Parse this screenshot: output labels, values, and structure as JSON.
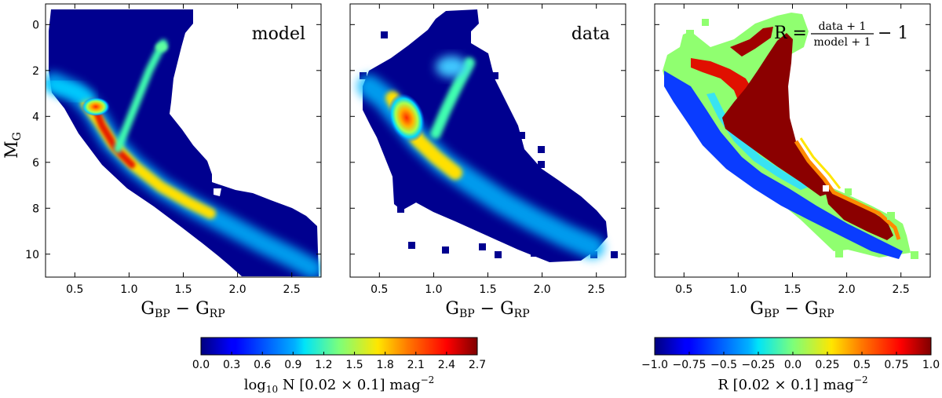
{
  "chart_data": [
    {
      "type": "heatmap",
      "panel_label": "model",
      "xlabel": "G_BP − G_RP",
      "xlabel_main": "G",
      "xlabel_sub1": "BP",
      "xlabel_sub2": "RP",
      "ylabel_main": "M",
      "ylabel_sub": "G",
      "xlim": [
        0.23,
        2.77
      ],
      "ylim": [
        11.0,
        -0.9
      ],
      "xticks": [
        "0.5",
        "1.0",
        "1.5",
        "2.0",
        "2.5"
      ],
      "xtick_values": [
        0.5,
        1.0,
        1.5,
        2.0,
        2.5
      ],
      "yticks": [
        "0",
        "2",
        "4",
        "6",
        "8",
        "10"
      ],
      "ytick_values": [
        0,
        2,
        4,
        6,
        8,
        10
      ],
      "colormap": "jet",
      "value_range": [
        0.0,
        2.7
      ]
    },
    {
      "type": "heatmap",
      "panel_label": "data",
      "xlabel": "G_BP − G_RP",
      "xlabel_main": "G",
      "xlabel_sub1": "BP",
      "xlabel_sub2": "RP",
      "xlim": [
        0.23,
        2.77
      ],
      "ylim": [
        11.0,
        -0.9
      ],
      "xticks": [
        "0.5",
        "1.0",
        "1.5",
        "2.0",
        "2.5"
      ],
      "xtick_values": [
        0.5,
        1.0,
        1.5,
        2.0,
        2.5
      ],
      "colormap": "jet",
      "value_range": [
        0.0,
        2.7
      ]
    },
    {
      "type": "heatmap",
      "panel_label": "R = (data + 1)/(model + 1) − 1",
      "formula_lhs": "R",
      "formula_num": "data + 1",
      "formula_den": "model + 1",
      "formula_tail": "− 1",
      "xlabel": "G_BP − G_RP",
      "xlabel_main": "G",
      "xlabel_sub1": "BP",
      "xlabel_sub2": "RP",
      "xlim": [
        0.23,
        2.77
      ],
      "ylim": [
        11.0,
        -0.9
      ],
      "xticks": [
        "0.5",
        "1.0",
        "1.5",
        "2.0",
        "2.5"
      ],
      "xtick_values": [
        0.5,
        1.0,
        1.5,
        2.0,
        2.5
      ],
      "colormap": "jet",
      "value_range": [
        -1.0,
        1.0
      ]
    }
  ],
  "colorbars": [
    {
      "ticks": [
        "0.0",
        "0.3",
        "0.6",
        "0.9",
        "1.2",
        "1.5",
        "1.8",
        "2.1",
        "2.4",
        "2.7"
      ],
      "tick_values": [
        0.0,
        0.3,
        0.6,
        0.9,
        1.2,
        1.5,
        1.8,
        2.1,
        2.4,
        2.7
      ],
      "range": [
        0.0,
        2.7
      ],
      "label": "log10 N [0.02 × 0.1] mag^-2",
      "label_log": "log",
      "label_log_sub": "10",
      "label_rest": " N [0.02 × 0.1] mag",
      "label_exp": "−2"
    },
    {
      "ticks": [
        "−1.0",
        "−0.75",
        "−0.5",
        "−0.25",
        "0.0",
        "0.25",
        "0.5",
        "0.75",
        "1.0"
      ],
      "tick_values": [
        -1.0,
        -0.75,
        -0.5,
        -0.25,
        0.0,
        0.25,
        0.5,
        0.75,
        1.0
      ],
      "range": [
        -1.0,
        1.0
      ],
      "label": "R [0.02 × 0.1] mag^-2",
      "label_rest": "R [0.02 × 0.1] mag",
      "label_exp": "−2"
    }
  ]
}
